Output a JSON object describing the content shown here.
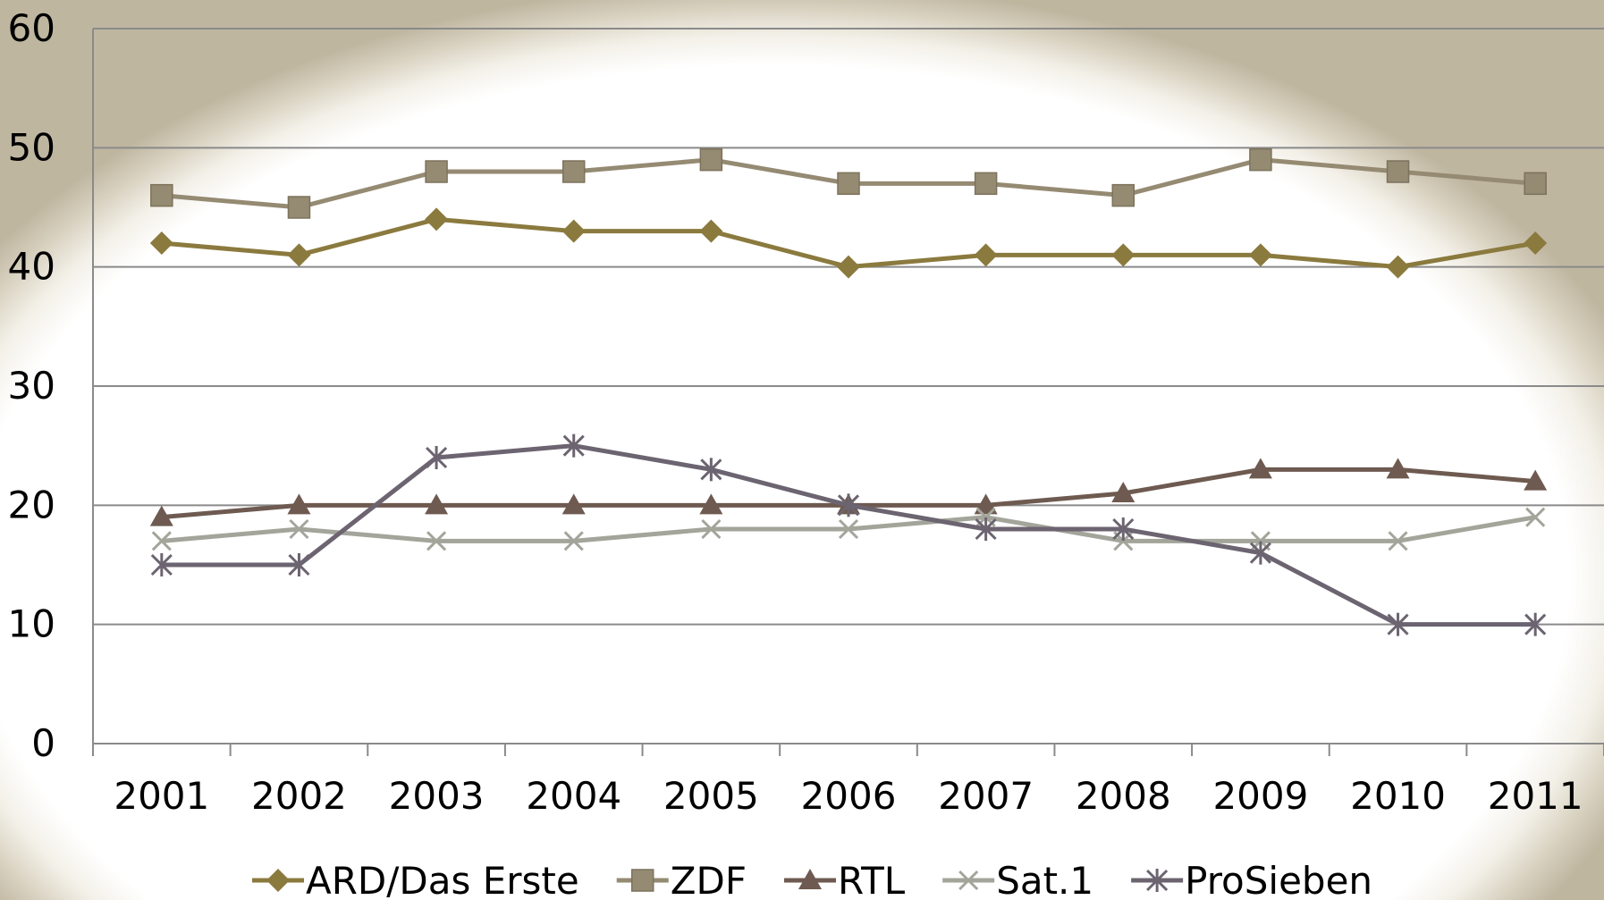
{
  "chart_data": {
    "type": "line",
    "title": "",
    "xlabel": "",
    "ylabel": "",
    "categories": [
      "2001",
      "2002",
      "2003",
      "2004",
      "2005",
      "2006",
      "2007",
      "2008",
      "2009",
      "2010",
      "2011"
    ],
    "ylim": [
      0,
      60
    ],
    "yticks": [
      0,
      10,
      20,
      30,
      40,
      50,
      60
    ],
    "grid": true,
    "legend_position": "bottom",
    "series": [
      {
        "name": "ARD/Das Erste",
        "color": "#8b7a3e",
        "marker": "diamond",
        "values": [
          42,
          41,
          44,
          43,
          43,
          40,
          41,
          41,
          41,
          40,
          42
        ]
      },
      {
        "name": "ZDF",
        "color": "#958a72",
        "marker": "square",
        "values": [
          46,
          45,
          48,
          48,
          49,
          47,
          47,
          46,
          49,
          48,
          47
        ]
      },
      {
        "name": "RTL",
        "color": "#6e5a50",
        "marker": "triangle",
        "values": [
          19,
          20,
          20,
          20,
          20,
          20,
          20,
          21,
          23,
          23,
          22
        ]
      },
      {
        "name": "Sat.1",
        "color": "#a3a59b",
        "marker": "x",
        "values": [
          17,
          18,
          17,
          17,
          18,
          18,
          19,
          17,
          17,
          17,
          19
        ]
      },
      {
        "name": "ProSieben",
        "color": "#6c6470",
        "marker": "star",
        "values": [
          15,
          15,
          24,
          25,
          23,
          20,
          18,
          18,
          16,
          10,
          10
        ]
      }
    ]
  }
}
